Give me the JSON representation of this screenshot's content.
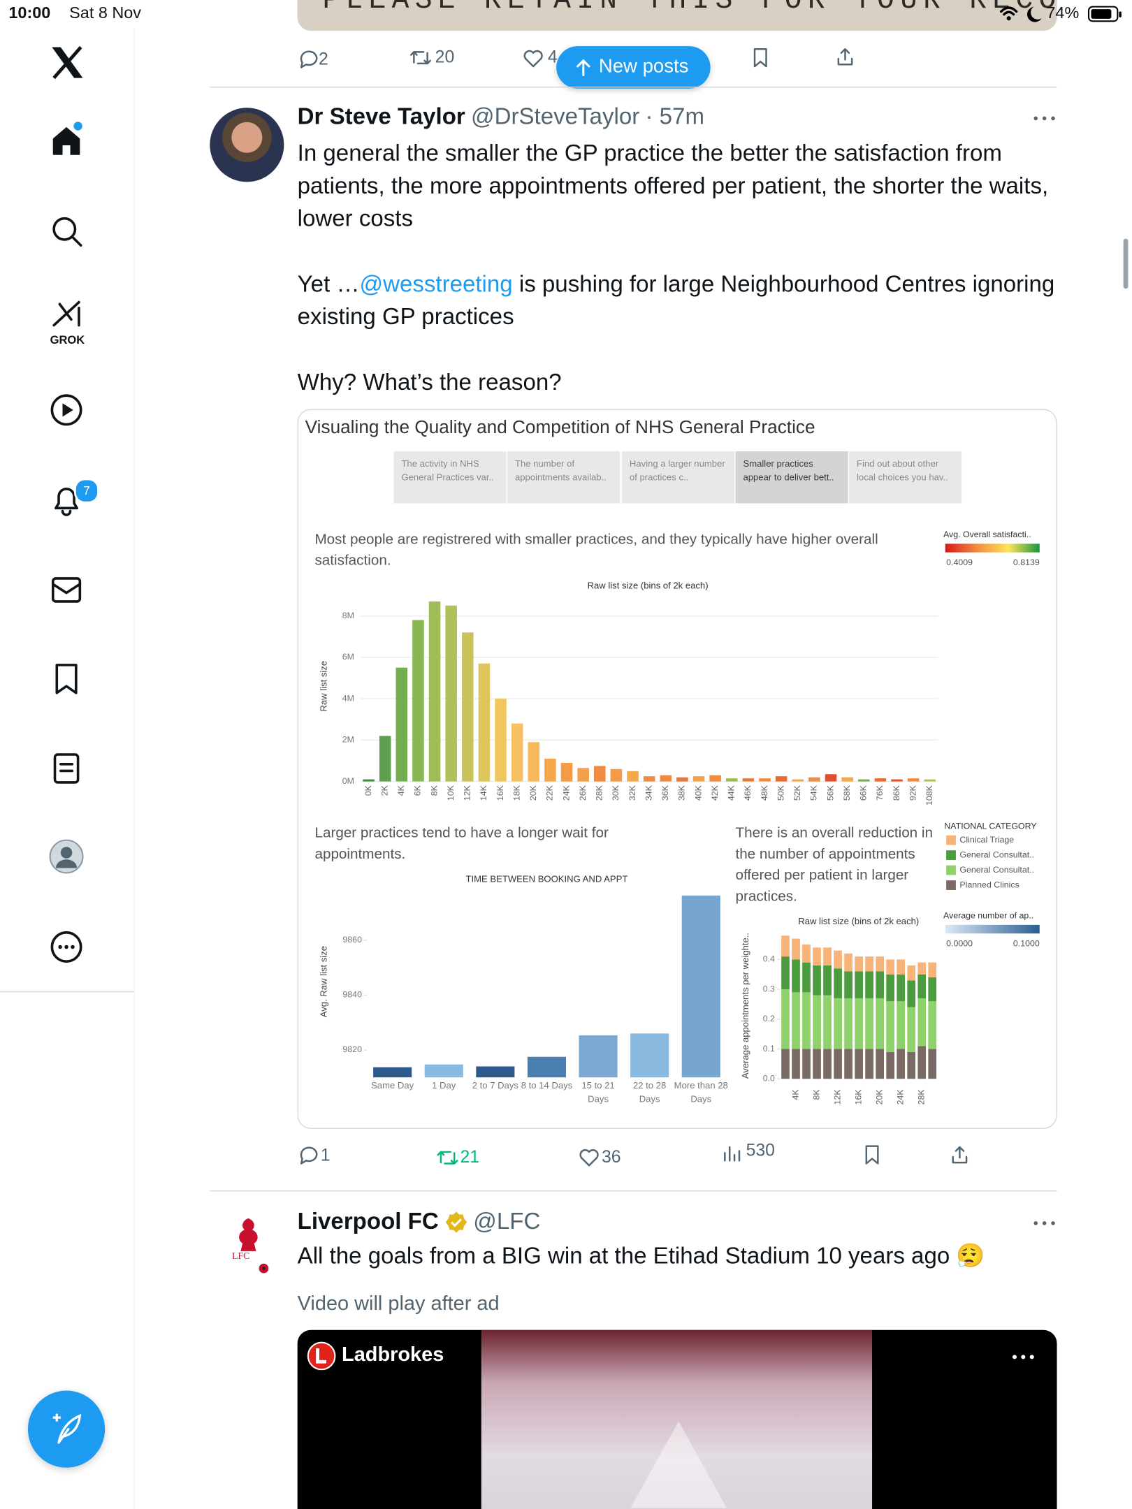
{
  "status_bar": {
    "time": "10:00",
    "date": "Sat 8 Nov",
    "battery": "74%"
  },
  "sidebar": {
    "grok_label": "GROK",
    "notification_count": 7
  },
  "previous_post": {
    "image_text": "PLEASE RETAIN THIS FOR YOUR RECORDS",
    "replies": 2,
    "reposts": 20,
    "likes": 4
  },
  "new_posts_button": "New posts",
  "post": {
    "author": "Dr Steve Taylor",
    "handle": "@DrSteveTaylor",
    "time": "· 57m",
    "paragraph_1": "In general the smaller the GP practice the better the satisfaction from patients, the more appointments offered per patient, the shorter the waits, lower costs",
    "paragraph_2_start": "Yet …",
    "mention": "@wesstreeting",
    "paragraph_2_end": " is pushing for large Neighbourhood Centres ignoring existing GP practices",
    "paragraph_3": "Why? What’s the reason?",
    "replies": 1,
    "reposts": 21,
    "likes": 36,
    "views": 530
  },
  "embed": {
    "title": "Visualing the Quality and Competition of NHS General Practice",
    "tabs": [
      "The activity in NHS General Practices var..",
      "The number of appointments availab..",
      "Having a larger number of practices c..",
      "Smaller practices appear to deliver bett..",
      "Find out about other local choices you hav.."
    ],
    "active_tab": 3
  },
  "chart_data": [
    {
      "type": "bar",
      "subtitle": "Most people are registrered with smaller practices, and they typically have higher overall satisfaction.",
      "title": "Raw list size (bins of 2k each)",
      "y_label": "Raw list size",
      "categories": [
        "0K",
        "2K",
        "4K",
        "6K",
        "8K",
        "10K",
        "12K",
        "14K",
        "16K",
        "18K",
        "20K",
        "22K",
        "24K",
        "26K",
        "28K",
        "30K",
        "32K",
        "34K",
        "36K",
        "38K",
        "40K",
        "42K",
        "44K",
        "46K",
        "48K",
        "50K",
        "52K",
        "54K",
        "56K",
        "58K",
        "66K",
        "76K",
        "86K",
        "92K",
        "108K"
      ],
      "values": [
        100000,
        2200000,
        5500000,
        7800000,
        8700000,
        8500000,
        7200000,
        5700000,
        4000000,
        2800000,
        1900000,
        1100000,
        900000,
        650000,
        750000,
        600000,
        500000,
        250000,
        300000,
        200000,
        250000,
        300000,
        150000,
        150000,
        150000,
        250000,
        100000,
        200000,
        350000,
        200000,
        100000,
        150000,
        100000,
        150000,
        100000
      ],
      "colors": [
        "#3d8b3d",
        "#5ea04f",
        "#74ad50",
        "#89b752",
        "#9dbd55",
        "#b1c157",
        "#c9c45a",
        "#dec55d",
        "#f0c660",
        "#f6c161",
        "#f6b85a",
        "#f5a84a",
        "#f39c45",
        "#f2a04a",
        "#f08c40",
        "#f49a48",
        "#f5a84a",
        "#f08c40",
        "#ee8a3e",
        "#e8783a",
        "#f3a048",
        "#f08c40",
        "#9dbd55",
        "#e8783a",
        "#f08c40",
        "#e86a34",
        "#f5a84a",
        "#f08c40",
        "#e0502c",
        "#f5a84a",
        "#74ad50",
        "#e86a34",
        "#e0502c",
        "#f08c40",
        "#b1c157"
      ],
      "ylim": [
        0,
        9000000
      ],
      "yticks": [
        {
          "value": 0,
          "label": "0M"
        },
        {
          "value": 2000000,
          "label": "2M"
        },
        {
          "value": 4000000,
          "label": "4M"
        },
        {
          "value": 6000000,
          "label": "6M"
        },
        {
          "value": 8000000,
          "label": "8M"
        }
      ],
      "grid": true,
      "color_legend": {
        "title": "Avg. Overall satisfacti..",
        "min": 0.4009,
        "max": 0.8139,
        "colors": [
          "#d7191c",
          "#f08c40",
          "#ffe45c",
          "#1a9641"
        ]
      }
    },
    {
      "type": "bar",
      "subtitle": "Larger practices tend to have a longer wait for appointments.",
      "title": "TIME BETWEEN BOOKING AND APPT",
      "y_label": "Avg. Raw list size",
      "categories": [
        "Same Day",
        "1 Day",
        "2 to 7 Days",
        "8 to 14 Days",
        "15 to 21 Days",
        "22 to 28 Days",
        "More than 28 Days"
      ],
      "values": [
        9813.7,
        9814.7,
        9814,
        9817.5,
        9825.3,
        9826,
        9876.3
      ],
      "colors": [
        "#2e5b8c",
        "#8ab9df",
        "#2e5b8c",
        "#4a7fb0",
        "#7aa8d2",
        "#8ab9df",
        "#76a6d0"
      ],
      "ylim": [
        9810,
        9880
      ],
      "yticks": [
        9820,
        9840,
        9860
      ],
      "grid": false,
      "color_legend": {
        "title": "Average number of ap..",
        "min": {
          "value": 0,
          "label": "0.0000"
        },
        "max": {
          "value": 0.1,
          "label": "0.1000"
        },
        "colors": [
          "#dbe9f6",
          "#2b5d8f"
        ]
      }
    },
    {
      "type": "stacked_bar",
      "subtitle": "There is an overall reduction in the number of appointments offered per patient in larger practices.",
      "title": "Raw list size (bins of 2k each)",
      "y_label": "Average appointments per weighte..",
      "legend_title": "NATIONAL CATEGORY",
      "categories": [
        null,
        "4K",
        null,
        "8K",
        null,
        "12K",
        null,
        "16K",
        null,
        "20K",
        null,
        "24K",
        null,
        "28K",
        null
      ],
      "series": [
        {
          "name": "Planned Clinics",
          "color": "#7a6a66",
          "values": [
            0.1,
            0.1,
            0.1,
            0.1,
            0.1,
            0.1,
            0.1,
            0.1,
            0.1,
            0.1,
            0.09,
            0.1,
            0.09,
            0.11,
            0.1
          ]
        },
        {
          "name": "General Consultat..",
          "color": "#8fd16a",
          "values": [
            0.2,
            0.19,
            0.19,
            0.18,
            0.18,
            0.17,
            0.17,
            0.17,
            0.17,
            0.17,
            0.17,
            0.16,
            0.15,
            0.16,
            0.16
          ]
        },
        {
          "name": "General Consultat..",
          "color": "#4b9b3f",
          "values": [
            0.11,
            0.11,
            0.1,
            0.1,
            0.1,
            0.1,
            0.09,
            0.09,
            0.09,
            0.09,
            0.09,
            0.09,
            0.09,
            0.08,
            0.08
          ]
        },
        {
          "name": "Clinical Triage",
          "color": "#f8b478",
          "values": [
            0.07,
            0.07,
            0.06,
            0.06,
            0.06,
            0.06,
            0.06,
            0.05,
            0.05,
            0.05,
            0.05,
            0.05,
            0.05,
            0.04,
            0.05
          ]
        }
      ],
      "ylim": [
        0,
        0.5
      ],
      "yticks": [
        {
          "value": 0,
          "label": "0.0"
        },
        0.1,
        0.2,
        0.3,
        0.4
      ],
      "grid": false
    }
  ],
  "next_post": {
    "author": "Liverpool FC",
    "handle": "@LFC",
    "crest_text": "LFC",
    "text": "All the goals from a BIG win at the Etihad Stadium 10 years ago 😮‍💨",
    "notice": "Video will play after ad",
    "ad_brand": "Ladbrokes"
  }
}
